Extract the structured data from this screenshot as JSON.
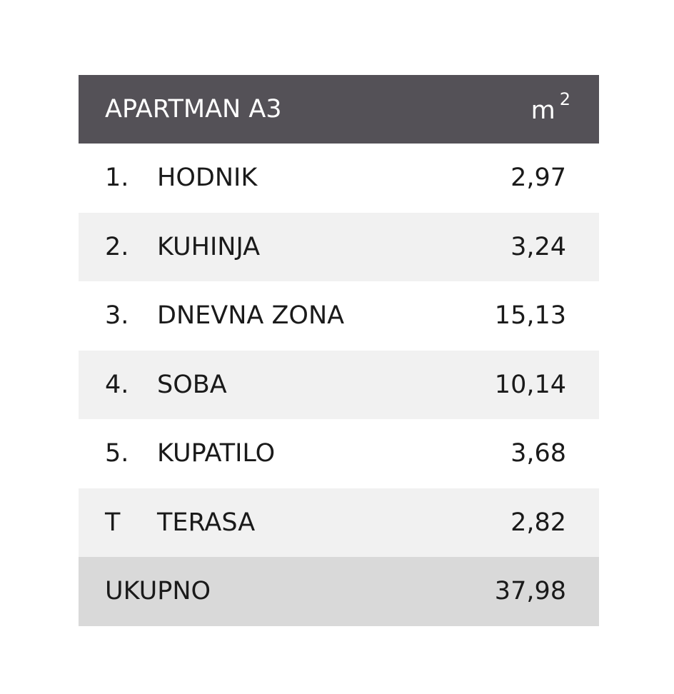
{
  "header": {
    "title": "APARTMAN A3",
    "unit": {
      "base": "m",
      "exponent": "2"
    }
  },
  "table": {
    "rows": [
      [
        "1.",
        "HODNIK",
        "2,97"
      ],
      [
        "2.",
        "KUHINJA",
        "3,24"
      ],
      [
        "3.",
        "DNEVNA ZONA",
        "15,13"
      ],
      [
        "4.",
        "SOBA",
        "10,14"
      ],
      [
        "5.",
        "KUPATILO",
        "3,68"
      ],
      [
        "T",
        "TERASA",
        "2,82"
      ]
    ]
  },
  "total": {
    "label": "UKUPNO",
    "value": "37,98"
  }
}
